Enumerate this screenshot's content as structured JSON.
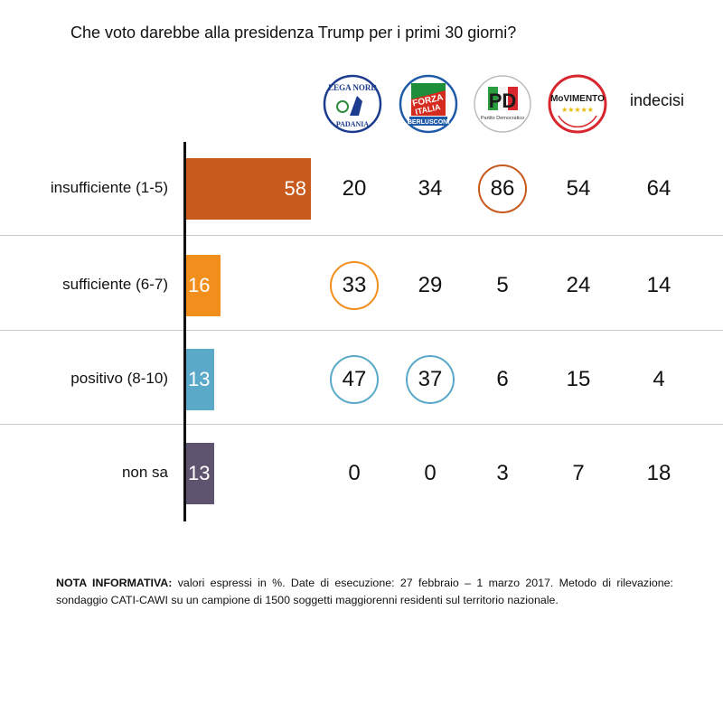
{
  "title": "Che voto darebbe alla presidenza Trump per i primi 30 giorni?",
  "columns": [
    {
      "key": "lega",
      "label": "",
      "logo": "lega-nord-logo",
      "logo_text": [
        "LEGA NORD",
        "PADANIA"
      ]
    },
    {
      "key": "fi",
      "label": "",
      "logo": "forza-italia-logo",
      "logo_text": [
        "FORZA ITALIA",
        "BERLUSCONI"
      ]
    },
    {
      "key": "pd",
      "label": "",
      "logo": "partito-democratico-logo",
      "logo_text": [
        "PD",
        "Partito Democratico"
      ]
    },
    {
      "key": "m5s",
      "label": "",
      "logo": "movimento-5-stelle-logo",
      "logo_text": [
        "MoVIMENTO",
        "★★★★★"
      ]
    },
    {
      "key": "indecisi",
      "label": "indecisi",
      "logo": ""
    }
  ],
  "chart_data": {
    "type": "bar",
    "orientation": "horizontal",
    "categories": [
      "insufficiente (1-5)",
      "sufficiente (6-7)",
      "positivo (8-10)",
      "non sa"
    ],
    "series": [
      {
        "values": [
          58,
          16,
          13,
          13
        ]
      }
    ],
    "bar_colors": [
      "#c75a1c",
      "#f28f1c",
      "#5aa9c9",
      "#5f5470"
    ],
    "bar_labels": [
      "58",
      "16",
      "13",
      "13"
    ],
    "table": [
      [
        "20",
        "34",
        "86",
        "54",
        "64"
      ],
      [
        "33",
        "29",
        "5",
        "24",
        "14"
      ],
      [
        "47",
        "37",
        "6",
        "15",
        "4"
      ],
      [
        "0",
        "0",
        "3",
        "7",
        "18"
      ]
    ],
    "highlights": [
      {
        "row": 0,
        "col": 2,
        "color": "#c75a1c"
      },
      {
        "row": 1,
        "col": 0,
        "color": "#f28f1c"
      },
      {
        "row": 2,
        "col": 0,
        "color": "#5aa9c9"
      },
      {
        "row": 2,
        "col": 1,
        "color": "#5aa9c9"
      }
    ],
    "title": "Che voto darebbe alla presidenza Trump per i primi 30 giorni?",
    "xlabel": "",
    "ylabel": "",
    "xlim": [
      0,
      100
    ],
    "grid": false,
    "legend": "none"
  },
  "note": {
    "bold": "NOTA INFORMATIVA:",
    "text": " valori espressi in %. Date di esecuzione: 27 febbraio – 1 marzo 2017. Metodo di rilevazione: sondaggio CATI-CAWI su un campione di 1500 soggetti maggiorenni residenti sul territorio nazionale."
  }
}
